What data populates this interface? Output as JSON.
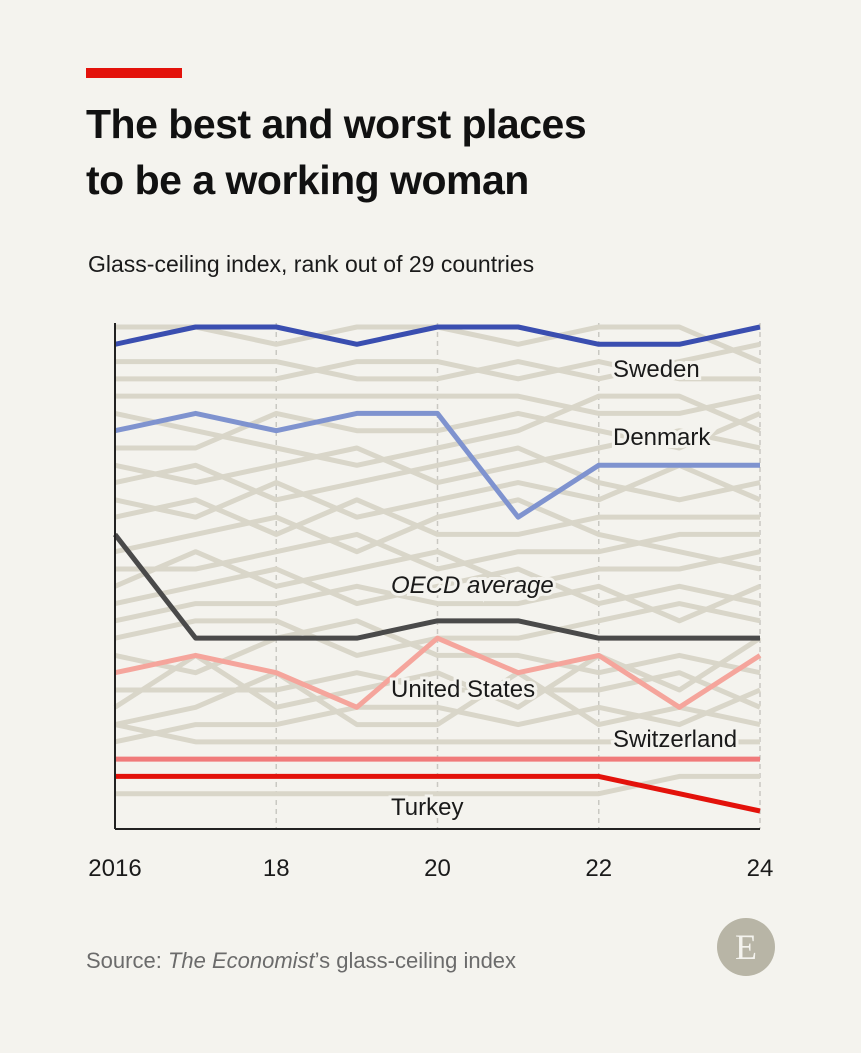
{
  "header": {
    "title_line1": "The best and worst places",
    "title_line2": "to be a working woman",
    "subtitle": "Glass-ceiling index, rank out of 29 countries"
  },
  "footer": {
    "source_prefix": "Source: ",
    "source_title": "The Economist",
    "source_suffix": "’s glass-ceiling index",
    "logo_letter": "E"
  },
  "colors": {
    "accent": "#e3120b",
    "background": "#f4f3ee",
    "grid": "#c9c8c2",
    "background_lines": "#d9d6c9",
    "axis": "#222222",
    "logo": "#b8b5a6"
  },
  "chart_data": {
    "type": "line",
    "x": [
      2016,
      2017,
      2018,
      2019,
      2020,
      2021,
      2022,
      2023,
      2024
    ],
    "x_tick_labels": [
      "2016",
      "18",
      "20",
      "22",
      "24"
    ],
    "x_tick_values": [
      2016,
      2018,
      2020,
      2022,
      2024
    ],
    "ylim": [
      1,
      29
    ],
    "y_inverted": true,
    "grid": "vertical dashed at tick years",
    "series": [
      {
        "name": "Sweden",
        "color": "#3a4eb0",
        "label_at_end": true,
        "values": [
          2,
          1,
          1,
          2,
          1,
          1,
          2,
          2,
          1
        ]
      },
      {
        "name": "Denmark",
        "color": "#7f93cf",
        "label_at_end": true,
        "values": [
          7,
          6,
          7,
          6,
          6,
          12,
          9,
          9,
          9
        ]
      },
      {
        "name": "OECD average",
        "color": "#4a4a4a",
        "italic": true,
        "values": [
          13,
          19,
          19,
          19,
          18,
          18,
          19,
          19,
          19
        ]
      },
      {
        "name": "United States",
        "color": "#f5a59c",
        "values": [
          21,
          20,
          21,
          23,
          19,
          21,
          20,
          23,
          20
        ]
      },
      {
        "name": "Switzerland",
        "color": "#f07a7a",
        "label_at_end": true,
        "values": [
          26,
          26,
          26,
          26,
          26,
          26,
          26,
          26,
          26
        ]
      },
      {
        "name": "Turkey",
        "color": "#e3120b",
        "values": [
          27,
          27,
          27,
          27,
          27,
          27,
          27,
          28,
          29
        ]
      }
    ],
    "other_countries": [
      [
        1,
        1,
        2,
        1,
        1,
        2,
        1,
        1,
        3
      ],
      [
        3,
        3,
        3,
        4,
        4,
        3,
        4,
        3,
        2
      ],
      [
        4,
        4,
        4,
        3,
        3,
        4,
        3,
        4,
        4
      ],
      [
        5,
        5,
        5,
        5,
        5,
        5,
        6,
        6,
        5
      ],
      [
        6,
        7,
        8,
        9,
        8,
        7,
        5,
        5,
        7
      ],
      [
        8,
        8,
        6,
        7,
        7,
        6,
        7,
        8,
        6
      ],
      [
        9,
        10,
        9,
        8,
        10,
        9,
        8,
        7,
        8
      ],
      [
        10,
        9,
        11,
        10,
        9,
        8,
        10,
        11,
        10
      ],
      [
        11,
        12,
        10,
        12,
        11,
        10,
        11,
        9,
        11
      ],
      [
        12,
        11,
        13,
        11,
        13,
        13,
        12,
        12,
        12
      ],
      [
        14,
        13,
        12,
        14,
        12,
        11,
        13,
        14,
        15
      ],
      [
        15,
        15,
        14,
        13,
        15,
        14,
        14,
        13,
        13
      ],
      [
        16,
        14,
        16,
        15,
        14,
        16,
        15,
        15,
        14
      ],
      [
        17,
        16,
        15,
        17,
        16,
        15,
        17,
        16,
        17
      ],
      [
        18,
        17,
        17,
        16,
        17,
        17,
        16,
        18,
        16
      ],
      [
        19,
        18,
        18,
        20,
        19,
        19,
        18,
        17,
        18
      ],
      [
        20,
        21,
        19,
        18,
        20,
        20,
        21,
        20,
        21
      ],
      [
        22,
        22,
        22,
        21,
        22,
        22,
        22,
        21,
        23
      ],
      [
        23,
        20,
        23,
        22,
        21,
        23,
        20,
        22,
        19
      ],
      [
        24,
        23,
        21,
        24,
        24,
        21,
        24,
        23,
        24
      ],
      [
        25,
        24,
        24,
        23,
        23,
        24,
        23,
        24,
        22
      ],
      [
        24,
        25,
        25,
        25,
        25,
        25,
        25,
        25,
        25
      ],
      [
        28,
        28,
        28,
        28,
        28,
        28,
        28,
        27,
        27
      ]
    ]
  }
}
